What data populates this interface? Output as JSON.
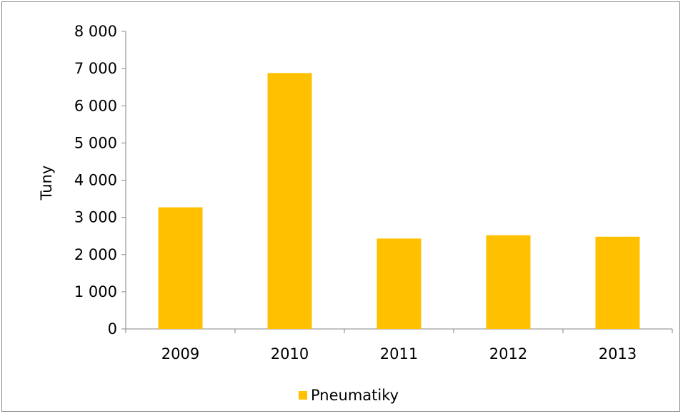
{
  "chart_data": {
    "type": "bar",
    "title": "",
    "xlabel": "",
    "ylabel": "Tuny",
    "categories": [
      "2009",
      "2010",
      "2011",
      "2012",
      "2013"
    ],
    "series": [
      {
        "name": "Pneumatiky",
        "values": [
          3270,
          6880,
          2430,
          2520,
          2480
        ],
        "color": "#FFC000"
      }
    ],
    "ylim": [
      0,
      8000
    ],
    "yticks": [
      0,
      1000,
      2000,
      3000,
      4000,
      5000,
      6000,
      7000,
      8000
    ],
    "ytick_labels": [
      "0",
      "1 000",
      "2 000",
      "3 000",
      "4 000",
      "5 000",
      "6 000",
      "7 000",
      "8 000"
    ],
    "grid": false,
    "legend_position": "bottom"
  }
}
